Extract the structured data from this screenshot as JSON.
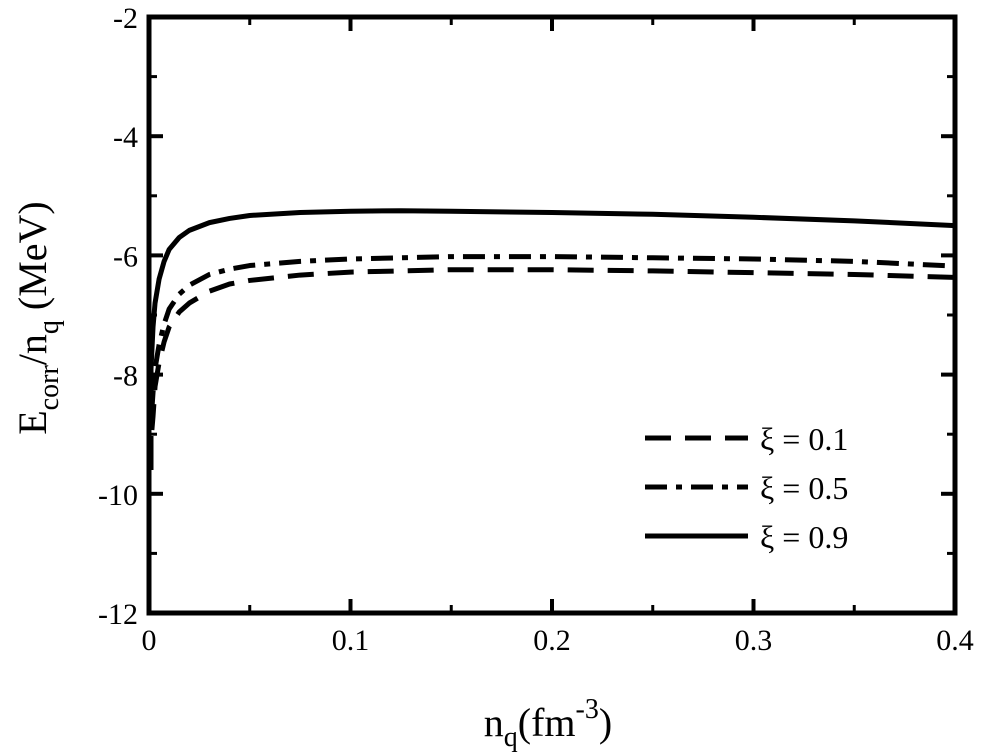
{
  "chart_data": {
    "type": "line",
    "title": "",
    "xlabel": {
      "main": "n",
      "sub": "q",
      "unit_open": "(fm",
      "sup": "-3",
      "unit_close": ")"
    },
    "ylabel": {
      "main": "E",
      "sub1": "corr",
      "slash": "/n",
      "sub2": "q",
      "unit": " (MeV)"
    },
    "xlim": [
      0,
      0.4
    ],
    "ylim": [
      -12,
      -2
    ],
    "xticks": [
      "0",
      "0.1",
      "0.2",
      "0.3",
      "0.4"
    ],
    "yticks": [
      "-12",
      "-10",
      "-8",
      "-6",
      "-4",
      "-2"
    ],
    "grid": false,
    "legend_position": "bottom-right",
    "series": [
      {
        "name": "ξ = 0.1",
        "style": "dashed",
        "x": [
          0.0005,
          0.001,
          0.002,
          0.003,
          0.005,
          0.0075,
          0.01,
          0.015,
          0.02,
          0.03,
          0.04,
          0.05,
          0.075,
          0.1,
          0.15,
          0.2,
          0.25,
          0.3,
          0.35,
          0.4
        ],
        "y": [
          -9.6,
          -9.1,
          -8.7,
          -8.2,
          -7.8,
          -7.45,
          -7.2,
          -6.95,
          -6.8,
          -6.6,
          -6.48,
          -6.42,
          -6.33,
          -6.28,
          -6.24,
          -6.24,
          -6.26,
          -6.29,
          -6.32,
          -6.37
        ]
      },
      {
        "name": "ξ = 0.5",
        "style": "dashdot",
        "x": [
          0.0005,
          0.001,
          0.002,
          0.003,
          0.005,
          0.0075,
          0.01,
          0.015,
          0.02,
          0.03,
          0.04,
          0.05,
          0.075,
          0.1,
          0.15,
          0.2,
          0.25,
          0.3,
          0.35,
          0.4
        ],
        "y": [
          -9.4,
          -8.8,
          -8.3,
          -7.9,
          -7.5,
          -7.15,
          -6.9,
          -6.65,
          -6.5,
          -6.32,
          -6.23,
          -6.17,
          -6.1,
          -6.06,
          -6.02,
          -6.02,
          -6.04,
          -6.06,
          -6.1,
          -6.18
        ]
      },
      {
        "name": "ξ = 0.9",
        "style": "solid",
        "x": [
          0.0005,
          0.001,
          0.002,
          0.003,
          0.005,
          0.0075,
          0.01,
          0.015,
          0.02,
          0.03,
          0.04,
          0.05,
          0.075,
          0.1,
          0.125,
          0.15,
          0.2,
          0.25,
          0.3,
          0.35,
          0.4
        ],
        "y": [
          -8.6,
          -7.9,
          -7.2,
          -6.8,
          -6.4,
          -6.1,
          -5.9,
          -5.7,
          -5.58,
          -5.45,
          -5.38,
          -5.33,
          -5.28,
          -5.26,
          -5.25,
          -5.26,
          -5.28,
          -5.31,
          -5.36,
          -5.42,
          -5.5
        ]
      }
    ]
  }
}
